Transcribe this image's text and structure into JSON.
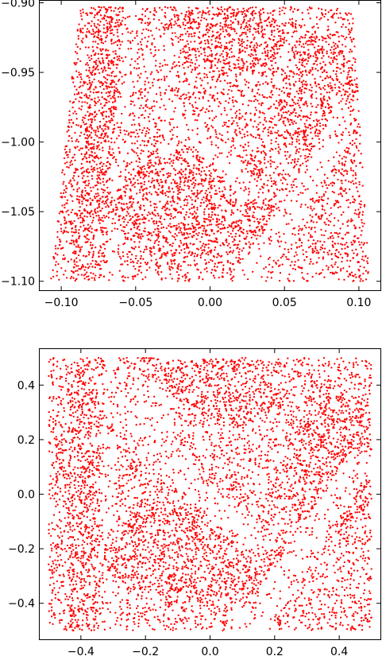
{
  "chart_data": [
    {
      "type": "scatter",
      "title": "",
      "xlabel": "",
      "ylabel": "",
      "xlim": [
        -0.115,
        0.115
      ],
      "ylim": [
        -1.107,
        -0.898
      ],
      "xticks": [
        -0.1,
        -0.05,
        0.0,
        0.05,
        0.1
      ],
      "xtick_labels": [
        "−0.10",
        "−0.05",
        "0.00",
        "0.05",
        "0.10"
      ],
      "yticks": [
        -0.9,
        -0.95,
        -1.0,
        -1.05,
        -1.1
      ],
      "ytick_labels": [
        "−0.90",
        "−0.95",
        "−1.00",
        "−1.05",
        "−1.10"
      ],
      "grid": false,
      "marker_color": "#ff0000",
      "description": "Dense point-stippled image in a slightly trapezoidal region (top edge from x≈-0.088 to x≈0.096 at y≈-0.903; bottom edge from x≈-0.107 to x≈0.107 at y≈-1.100)"
    },
    {
      "type": "scatter",
      "title": "",
      "xlabel": "",
      "ylabel": "",
      "xlim": [
        -0.53,
        0.53
      ],
      "ylim": [
        -0.535,
        0.535
      ],
      "xticks": [
        -0.4,
        -0.2,
        0.0,
        0.2,
        0.4
      ],
      "xtick_labels": [
        "−0.4",
        "−0.2",
        "0.0",
        "0.2",
        "0.4"
      ],
      "yticks": [
        0.4,
        0.2,
        0.0,
        -0.2,
        -0.4
      ],
      "ytick_labels": [
        "0.4",
        "0.2",
        "0.0",
        "−0.2",
        "−0.4"
      ],
      "grid": false,
      "marker_color": "#ff0000",
      "description": "Same stippled image rectified to the square region x∈[-0.5,0.5], y∈[-0.5,0.5]"
    }
  ]
}
